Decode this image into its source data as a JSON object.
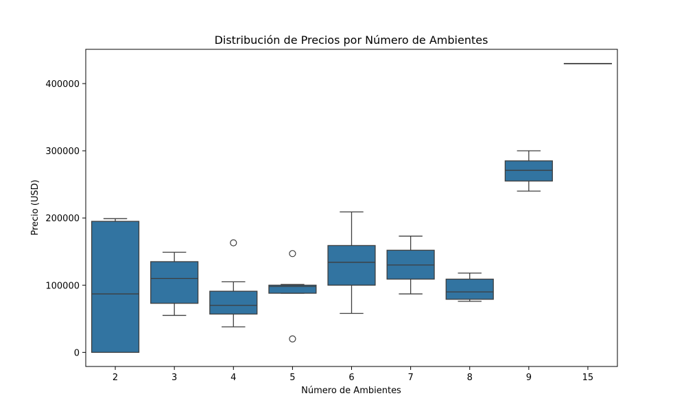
{
  "chart_data": {
    "type": "boxplot",
    "title": "Distribución de Precios por Número de Ambientes",
    "xlabel": "Número de Ambientes",
    "ylabel": "Precio (USD)",
    "ylim": [
      -21000,
      451000
    ],
    "yticks": [
      0,
      100000,
      200000,
      300000,
      400000
    ],
    "box_color": "#3274a1",
    "line_color": "#3d3d3d",
    "categories": [
      "2",
      "3",
      "4",
      "5",
      "6",
      "7",
      "8",
      "9",
      "15"
    ],
    "boxes": [
      {
        "category": "2",
        "whisker_low": 0,
        "q1": 0,
        "median": 87000,
        "q3": 195000,
        "whisker_high": 199000,
        "outliers": []
      },
      {
        "category": "3",
        "whisker_low": 55000,
        "q1": 73000,
        "median": 110000,
        "q3": 135000,
        "whisker_high": 149000,
        "outliers": []
      },
      {
        "category": "4",
        "whisker_low": 38000,
        "q1": 57000,
        "median": 70000,
        "q3": 91000,
        "whisker_high": 105000,
        "outliers": [
          163000
        ]
      },
      {
        "category": "5",
        "whisker_low": 88000,
        "q1": 88000,
        "median": 98000,
        "q3": 100000,
        "whisker_high": 101000,
        "outliers": [
          147000,
          20000
        ]
      },
      {
        "category": "6",
        "whisker_low": 58000,
        "q1": 100000,
        "median": 134000,
        "q3": 159000,
        "whisker_high": 209000,
        "outliers": []
      },
      {
        "category": "7",
        "whisker_low": 87000,
        "q1": 109000,
        "median": 130000,
        "q3": 152000,
        "whisker_high": 173000,
        "outliers": []
      },
      {
        "category": "8",
        "whisker_low": 76000,
        "q1": 79000,
        "median": 90000,
        "q3": 109000,
        "whisker_high": 118000,
        "outliers": []
      },
      {
        "category": "9",
        "whisker_low": 240000,
        "q1": 255000,
        "median": 271000,
        "q3": 285000,
        "whisker_high": 300000,
        "outliers": []
      },
      {
        "category": "15",
        "whisker_low": 430000,
        "q1": 430000,
        "median": 430000,
        "q3": 430000,
        "whisker_high": 430000,
        "outliers": []
      }
    ]
  }
}
